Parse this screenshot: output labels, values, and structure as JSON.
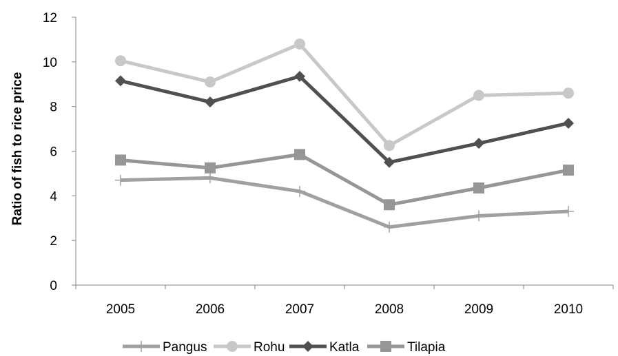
{
  "chart_data": {
    "type": "line",
    "title": "",
    "xlabel": "",
    "ylabel": "Ratio of fish to rice price",
    "categories": [
      "2005",
      "2006",
      "2007",
      "2008",
      "2009",
      "2010"
    ],
    "ylim": [
      0,
      12
    ],
    "yticks": [
      "0",
      "2",
      "4",
      "6",
      "8",
      "10",
      "12"
    ],
    "grid": false,
    "legend_position": "bottom",
    "series": [
      {
        "name": "Pangus",
        "values": [
          4.7,
          4.8,
          4.2,
          2.6,
          3.1,
          3.3
        ],
        "color": "#a0a0a0",
        "marker": "plus"
      },
      {
        "name": "Rohu",
        "values": [
          10.05,
          9.1,
          10.8,
          6.25,
          8.5,
          8.6
        ],
        "color": "#c8c8c8",
        "marker": "circle"
      },
      {
        "name": "Katla",
        "values": [
          9.15,
          8.2,
          9.35,
          5.5,
          6.35,
          7.25
        ],
        "color": "#505050",
        "marker": "diamond"
      },
      {
        "name": "Tilapia",
        "values": [
          5.6,
          5.25,
          5.85,
          3.6,
          4.35,
          5.15
        ],
        "color": "#969696",
        "marker": "square"
      }
    ]
  }
}
